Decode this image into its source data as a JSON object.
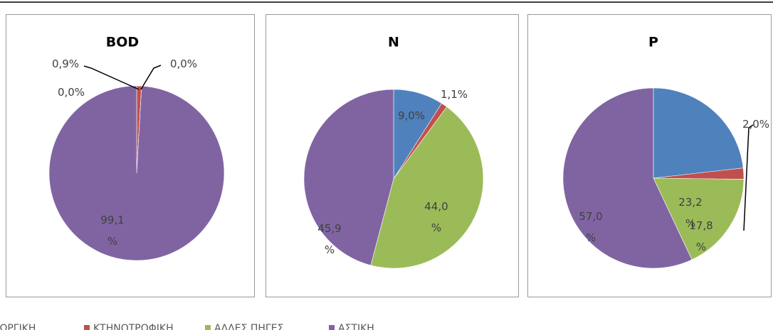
{
  "chart_data": [
    {
      "type": "pie",
      "title": "BOD",
      "categories": [
        "ΓΕΩΡΓΙΚΗ",
        "ΚΤΗΝΟΤΡΟΦΙΚΗ",
        "ΑΛΛΕΣ ΠΗΓΕΣ",
        "ΑΣΤΙΚΗ"
      ],
      "colors": [
        "#4f81bd",
        "#c0504d",
        "#9bbb59",
        "#8064a2"
      ],
      "values": [
        0.0,
        0.9,
        0.0,
        99.1
      ],
      "value_labels": [
        "0,0%",
        "0,9%",
        "0,0%",
        "99,1\n%"
      ],
      "legend": "bottom"
    },
    {
      "type": "pie",
      "title": "N",
      "categories": [
        "ΓΕΩΡΓΙΚΗ",
        "ΚΤΗΝΟΤΡΟΦΙΚΗ",
        "ΑΛΛΕΣ ΠΗΓΕΣ",
        "ΑΣΤΙΚΗ"
      ],
      "colors": [
        "#4f81bd",
        "#c0504d",
        "#9bbb59",
        "#8064a2"
      ],
      "values": [
        9.0,
        1.1,
        44.0,
        45.9
      ],
      "value_labels": [
        "9,0%",
        "1,1%",
        "44,0\n%",
        "45,9\n%"
      ]
    },
    {
      "type": "pie",
      "title": "P",
      "categories": [
        "ΓΕΩΡΓΙΚΗ",
        "ΚΤΗΝΟΤΡΟΦΙΚΗ",
        "ΑΛΛΕΣ ΠΗΓΕΣ",
        "ΑΣΤΙΚΗ"
      ],
      "colors": [
        "#4f81bd",
        "#c0504d",
        "#9bbb59",
        "#8064a2"
      ],
      "values": [
        23.2,
        2.0,
        17.8,
        57.0
      ],
      "value_labels": [
        "23,2\n%",
        "2,0%",
        "17,8\n%",
        "57,0\n%"
      ]
    }
  ]
}
